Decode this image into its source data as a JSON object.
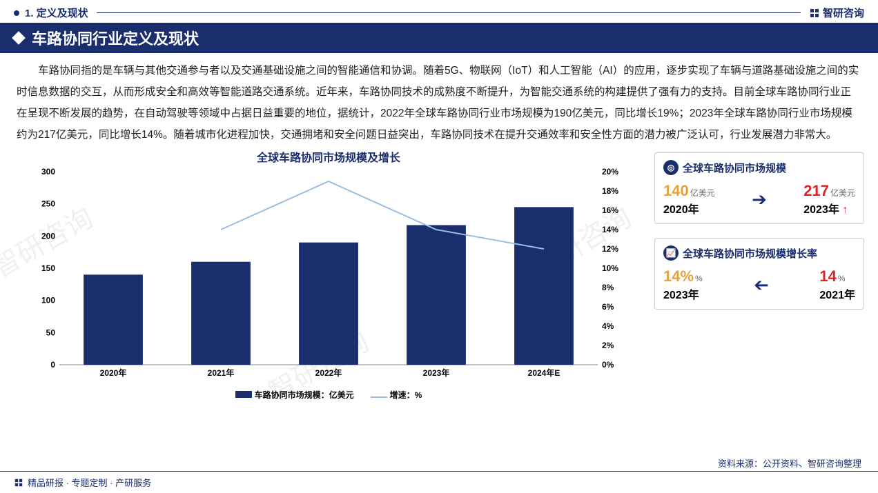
{
  "header": {
    "section_label": "1. 定义及现状",
    "brand": "智研咨询"
  },
  "title": "车路协同行业定义及现状",
  "paragraph": "车路协同指的是车辆与其他交通参与者以及交通基础设施之间的智能通信和协调。随着5G、物联网（IoT）和人工智能（AI）的应用，逐步实现了车辆与道路基础设施之间的实时信息数据的交互，从而形成安全和高效等智能道路交通系统。近年来，车路协同技术的成熟度不断提升，为智能交通系统的构建提供了强有力的支持。目前全球车路协同行业正在呈现不断发展的趋势，在自动驾驶等领域中占据日益重要的地位，据统计，2022年全球车路协同行业市场规模为190亿美元，同比增长19%；2023年全球车路协同行业市场规模约为217亿美元，同比增长14%。随着城市化进程加快，交通拥堵和安全问题日益突出，车路协同技术在提升交通效率和安全性方面的潜力被广泛认可，行业发展潜力非常大。",
  "chart": {
    "title": "全球车路协同市场规模及增长",
    "type": "bar+line",
    "categories": [
      "2020年",
      "2021年",
      "2022年",
      "2023年",
      "2024年E"
    ],
    "bar_values": [
      140,
      160,
      190,
      217,
      245
    ],
    "line_values": [
      null,
      14,
      19,
      14,
      12
    ],
    "left_axis": {
      "min": 0,
      "max": 300,
      "step": 50
    },
    "right_axis": {
      "min": 0,
      "max": 20,
      "step": 2,
      "suffix": "%"
    },
    "bar_color": "#1a2e6e",
    "line_color": "#9bbde0",
    "grid_color": "#d9d9d9",
    "background_color": "#ffffff",
    "label_fontsize": 12,
    "title_fontsize": 16,
    "legend": {
      "bar": "车路协同市场规模：亿美元",
      "line": "增速：%"
    }
  },
  "panels": {
    "scale": {
      "title": "全球车路协同市场规模",
      "left": {
        "value": "140",
        "unit": "亿美元",
        "year": "2020年",
        "color": "#e8a23a"
      },
      "right": {
        "value": "217",
        "unit": "亿美元",
        "year": "2023年",
        "color": "#d9252a",
        "up": true
      },
      "arrow_dir": "right"
    },
    "growth": {
      "title": "全球车路协同市场规模增长率",
      "left": {
        "value": "14%",
        "unit": "%",
        "year": "2023年",
        "color": "#e8a23a"
      },
      "right": {
        "value": "14",
        "unit": "%",
        "year": "2021年",
        "color": "#d9252a"
      },
      "arrow_dir": "left"
    }
  },
  "source": "资料来源：公开资料、智研咨询整理",
  "footer": "精品研报 · 专题定制 · 产研服务"
}
